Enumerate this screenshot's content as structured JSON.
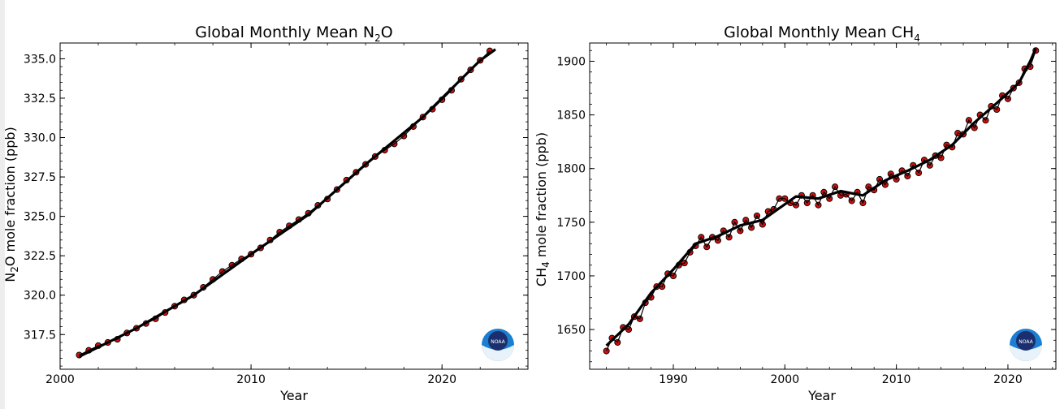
{
  "chart_data": [
    {
      "type": "scatter",
      "title": "Global Monthly Mean N₂O",
      "title_main": "Global Monthly Mean N",
      "title_sub": "2",
      "title_tail": "O",
      "xlabel": "Year",
      "ylabel": "N₂O mole fraction (ppb)",
      "ylabel_main": "N",
      "ylabel_sub": "2",
      "ylabel_tail": "O mole fraction (ppb)",
      "xlim": [
        2000,
        2024.5
      ],
      "ylim": [
        315.3,
        336.0
      ],
      "xticks": [
        2000,
        2010,
        2020
      ],
      "yticks": [
        317.5,
        320.0,
        322.5,
        325.0,
        327.5,
        330.0,
        332.5,
        335.0
      ],
      "ytick_labels": [
        "317.5",
        "320.0",
        "322.5",
        "325.0",
        "327.5",
        "330.0",
        "332.5",
        "335.0"
      ],
      "grid": false,
      "marker_color": "#cc1111",
      "trend_color": "#000000",
      "series": [
        {
          "role": "monthly-means",
          "x": [
            2001.0,
            2001.5,
            2002.0,
            2002.5,
            2003.0,
            2003.5,
            2004.0,
            2004.5,
            2005.0,
            2005.5,
            2006.0,
            2006.5,
            2007.0,
            2007.5,
            2008.0,
            2008.5,
            2009.0,
            2009.5,
            2010.0,
            2010.5,
            2011.0,
            2011.5,
            2012.0,
            2012.5,
            2013.0,
            2013.5,
            2014.0,
            2014.5,
            2015.0,
            2015.5,
            2016.0,
            2016.5,
            2017.0,
            2017.5,
            2018.0,
            2018.5,
            2019.0,
            2019.5,
            2020.0,
            2020.5,
            2021.0,
            2021.5,
            2022.0,
            2022.5
          ],
          "y": [
            316.2,
            316.5,
            316.8,
            317.0,
            317.2,
            317.6,
            317.9,
            318.2,
            318.5,
            318.9,
            319.3,
            319.7,
            320.0,
            320.5,
            321.0,
            321.5,
            321.9,
            322.3,
            322.6,
            323.0,
            323.5,
            324.0,
            324.4,
            324.8,
            325.2,
            325.7,
            326.1,
            326.7,
            327.3,
            327.8,
            328.3,
            328.8,
            329.2,
            329.6,
            330.1,
            330.7,
            331.3,
            331.8,
            332.4,
            333.0,
            333.7,
            334.3,
            334.9,
            335.5
          ]
        },
        {
          "role": "trend",
          "x": [
            2001.0,
            2004.0,
            2007.0,
            2010.0,
            2013.0,
            2016.0,
            2019.0,
            2022.0,
            2022.8
          ],
          "y": [
            316.1,
            317.9,
            320.0,
            322.6,
            325.1,
            328.3,
            331.3,
            334.9,
            335.6
          ]
        }
      ]
    },
    {
      "type": "scatter",
      "title": "Global Monthly Mean CH₄",
      "title_main": "Global Monthly Mean CH",
      "title_sub": "4",
      "title_tail": "",
      "xlabel": "Year",
      "ylabel": "CH₄ mole fraction (ppb)",
      "ylabel_main": "CH",
      "ylabel_sub": "4",
      "ylabel_tail": " mole fraction (ppb)",
      "xlim": [
        1982.5,
        2024.3
      ],
      "ylim": [
        1613,
        1917
      ],
      "xticks": [
        1990,
        2000,
        2010,
        2020
      ],
      "yticks": [
        1650,
        1700,
        1750,
        1800,
        1850,
        1900
      ],
      "ytick_labels": [
        "1650",
        "1700",
        "1750",
        "1800",
        "1850",
        "1900"
      ],
      "grid": false,
      "marker_color": "#cc1111",
      "trend_color": "#000000",
      "series": [
        {
          "role": "monthly-means",
          "x": [
            1984.0,
            1984.5,
            1985.0,
            1985.5,
            1986.0,
            1986.5,
            1987.0,
            1987.5,
            1988.0,
            1988.5,
            1989.0,
            1989.5,
            1990.0,
            1990.5,
            1991.0,
            1991.5,
            1992.0,
            1992.5,
            1993.0,
            1993.5,
            1994.0,
            1994.5,
            1995.0,
            1995.5,
            1996.0,
            1996.5,
            1997.0,
            1997.5,
            1998.0,
            1998.5,
            1999.0,
            1999.5,
            2000.0,
            2000.5,
            2001.0,
            2001.5,
            2002.0,
            2002.5,
            2003.0,
            2003.5,
            2004.0,
            2004.5,
            2005.0,
            2005.5,
            2006.0,
            2006.5,
            2007.0,
            2007.5,
            2008.0,
            2008.5,
            2009.0,
            2009.5,
            2010.0,
            2010.5,
            2011.0,
            2011.5,
            2012.0,
            2012.5,
            2013.0,
            2013.5,
            2014.0,
            2014.5,
            2015.0,
            2015.5,
            2016.0,
            2016.5,
            2017.0,
            2017.5,
            2018.0,
            2018.5,
            2019.0,
            2019.5,
            2020.0,
            2020.5,
            2021.0,
            2021.5,
            2022.0,
            2022.5
          ],
          "y": [
            1630,
            1642,
            1638,
            1652,
            1650,
            1662,
            1660,
            1675,
            1680,
            1690,
            1690,
            1702,
            1700,
            1710,
            1712,
            1722,
            1728,
            1736,
            1727,
            1736,
            1733,
            1742,
            1736,
            1750,
            1742,
            1752,
            1745,
            1756,
            1748,
            1760,
            1762,
            1772,
            1772,
            1768,
            1766,
            1775,
            1768,
            1775,
            1766,
            1778,
            1772,
            1783,
            1775,
            1776,
            1770,
            1778,
            1768,
            1783,
            1780,
            1790,
            1785,
            1795,
            1790,
            1798,
            1793,
            1803,
            1796,
            1808,
            1803,
            1812,
            1810,
            1822,
            1820,
            1833,
            1832,
            1845,
            1838,
            1850,
            1845,
            1858,
            1855,
            1868,
            1865,
            1875,
            1880,
            1893,
            1895,
            1910
          ]
        },
        {
          "role": "trend",
          "x": [
            1984.0,
            1986.0,
            1988.0,
            1990.0,
            1992.0,
            1994.0,
            1996.0,
            1998.0,
            1999.5,
            2001.0,
            2003.0,
            2005.0,
            2007.0,
            2009.0,
            2011.0,
            2013.0,
            2015.0,
            2017.0,
            2019.0,
            2021.0,
            2022.0,
            2022.5
          ],
          "y": [
            1635,
            1655,
            1684,
            1706,
            1730,
            1737,
            1747,
            1752,
            1763,
            1774,
            1772,
            1779,
            1775,
            1789,
            1798,
            1808,
            1822,
            1843,
            1861,
            1880,
            1900,
            1912
          ]
        }
      ]
    }
  ],
  "logos": [
    {
      "icon": "noaa-logo-icon",
      "text": "NOAA"
    },
    {
      "icon": "noaa-logo-icon",
      "text": "NOAA"
    }
  ]
}
